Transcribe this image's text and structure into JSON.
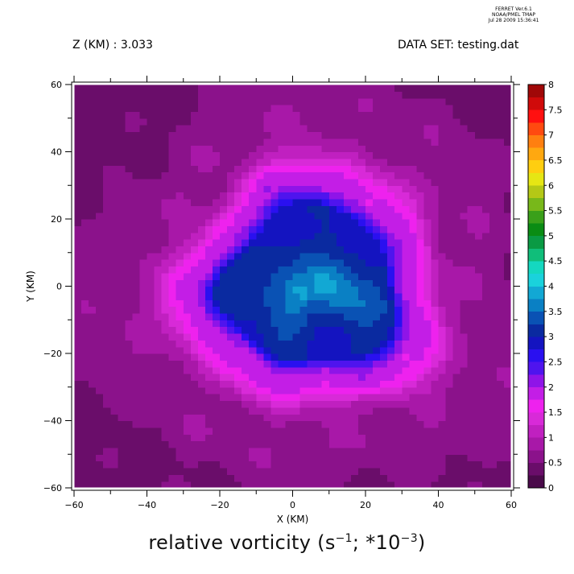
{
  "banner": {
    "line1": "FERRET  Ver.6.1",
    "line2": "NOAA/PMEL TMAP",
    "line3": "Jul 28 2009 15:36:41"
  },
  "header": {
    "left": "Z (KM) : 3.033",
    "right": "DATA SET: testing.dat"
  },
  "caption": {
    "main": "relative vorticity (s",
    "exp1": "−1",
    "mid": "; *10",
    "exp2": "−3",
    "end": ")"
  },
  "chart_data": {
    "type": "heatmap",
    "xlabel": "X (KM)",
    "ylabel": "Y (KM)",
    "xlim": [
      -60,
      60
    ],
    "ylim": [
      -60,
      60
    ],
    "x_ticks": [
      -60,
      -40,
      -20,
      0,
      20,
      40,
      60
    ],
    "y_ticks": [
      -60,
      -40,
      -20,
      0,
      20,
      40,
      60
    ],
    "x_tick_labels": [
      "−60",
      "−40",
      "−20",
      "0",
      "20",
      "40",
      "60"
    ],
    "y_tick_labels": [
      "−60",
      "−40",
      "−20",
      "0",
      "20",
      "40",
      "60"
    ],
    "colorbar": {
      "levels": [
        0,
        0.25,
        0.5,
        0.75,
        1,
        1.25,
        1.5,
        1.75,
        2,
        2.25,
        2.5,
        2.75,
        3,
        3.25,
        3.5,
        3.75,
        4,
        4.25,
        4.5,
        4.75,
        5,
        5.25,
        5.5,
        5.75,
        6,
        6.25,
        6.5,
        6.75,
        7,
        7.25,
        7.5,
        7.75,
        8
      ],
      "labels": [
        "0",
        "0.5",
        "1",
        "1.5",
        "2",
        "2.5",
        "3",
        "3.5",
        "4",
        "4.5",
        "5",
        "5.5",
        "6",
        "6.5",
        "7",
        "7.5",
        "8"
      ],
      "colors": [
        "#4a0a4a",
        "#6a0d6a",
        "#8b128b",
        "#a818a8",
        "#c020c0",
        "#d82ad8",
        "#ee22ee",
        "#c31ee6",
        "#8f14e8",
        "#4f14ee",
        "#2a10f0",
        "#1414c0",
        "#0a2aa0",
        "#0a52b4",
        "#0a80c4",
        "#12a8d4",
        "#1ad2dc",
        "#14d8c0",
        "#10be7a",
        "#0a9a44",
        "#0a8c14",
        "#3aa01a",
        "#78b81a",
        "#b4c816",
        "#e6e614",
        "#ffce10",
        "#ffa810",
        "#ff7f10",
        "#ff4a10",
        "#ff1010",
        "#d00a0a",
        "#a00808"
      ]
    },
    "field": {
      "background_value": 0.4,
      "vortex_center": [
        5,
        0
      ],
      "description_values": {
        "outer_ring_max": 1.9,
        "core_min": 2.9,
        "core_max": 3.8
      }
    }
  }
}
